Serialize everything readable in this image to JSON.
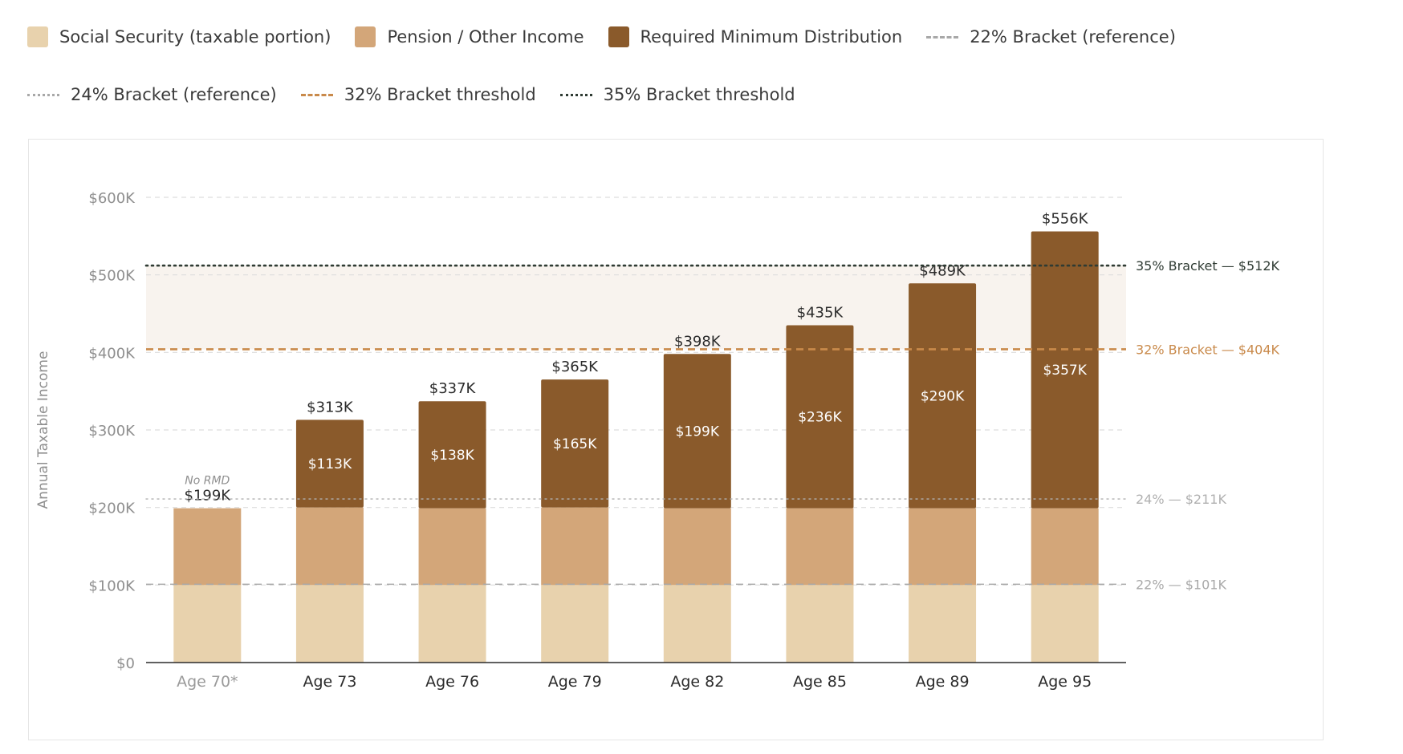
{
  "legend": {
    "items": [
      {
        "label": "Social Security (taxable portion)",
        "kind": "swatch",
        "color": "#e8d2ad"
      },
      {
        "label": "Pension / Other Income",
        "kind": "swatch",
        "color": "#d3a679"
      },
      {
        "label": "Required Minimum Distribution",
        "kind": "swatch",
        "color": "#8a5a2b"
      },
      {
        "label": "22% Bracket (reference)",
        "kind": "line",
        "color": "#a8a8a8",
        "dash": "dashed"
      },
      {
        "label": "24% Bracket (reference)",
        "kind": "line",
        "color": "#a8a8a8",
        "dash": "dotted"
      },
      {
        "label": "32% Bracket threshold",
        "kind": "line",
        "color": "#c98a4b",
        "dash": "dashed"
      },
      {
        "label": "35% Bracket threshold",
        "kind": "line",
        "color": "#2f3b33",
        "dash": "dotted"
      }
    ]
  },
  "chart_data": {
    "type": "bar",
    "stacked": true,
    "ylabel": "Annual Taxable Income",
    "ylim": [
      0,
      600000
    ],
    "yticks": [
      {
        "value": 0,
        "label": "$0"
      },
      {
        "value": 100000,
        "label": "$100K"
      },
      {
        "value": 200000,
        "label": "$200K"
      },
      {
        "value": 300000,
        "label": "$300K"
      },
      {
        "value": 400000,
        "label": "$400K"
      },
      {
        "value": 500000,
        "label": "$500K"
      },
      {
        "value": 600000,
        "label": "$600K"
      }
    ],
    "grid": true,
    "categories": [
      "Age 70*",
      "Age 73",
      "Age 76",
      "Age 79",
      "Age 82",
      "Age 85",
      "Age 89",
      "Age 95"
    ],
    "series": [
      {
        "name": "Social Security (taxable portion)",
        "color": "#e8d2ad",
        "values": [
          100000,
          100000,
          100000,
          100000,
          100000,
          100000,
          100000,
          100000
        ]
      },
      {
        "name": "Pension / Other Income",
        "color": "#d3a679",
        "values": [
          99000,
          100000,
          99000,
          100000,
          99000,
          99000,
          99000,
          99000
        ]
      },
      {
        "name": "Required Minimum Distribution",
        "color": "#8a5a2b",
        "values": [
          0,
          113000,
          138000,
          165000,
          199000,
          236000,
          290000,
          357000
        ],
        "labels": [
          "",
          "$113K",
          "$138K",
          "$165K",
          "$199K",
          "$236K",
          "$290K",
          "$357K"
        ]
      }
    ],
    "totals": [
      "$199K",
      "$313K",
      "$337K",
      "$365K",
      "$398K",
      "$435K",
      "$489K",
      "$556K"
    ],
    "total_values": [
      199000,
      313000,
      337000,
      365000,
      398000,
      435000,
      489000,
      556000
    ],
    "bar_notes": [
      "No RMD",
      "",
      "",
      "",
      "",
      "",
      "",
      ""
    ],
    "reference_lines": [
      {
        "value": 101000,
        "label": "22% — $101K",
        "color": "#a8a8a8",
        "dash": "dashed"
      },
      {
        "value": 211000,
        "label": "24% — $211K",
        "color": "#b0b0b0",
        "dash": "dotted"
      },
      {
        "value": 404000,
        "label": "32% Bracket — $404K",
        "color": "#c98a4b",
        "dash": "dashed"
      },
      {
        "value": 512000,
        "label": "35% Bracket — $512K",
        "color": "#2f3b33",
        "dash": "dotted"
      }
    ],
    "shaded_band": {
      "from": 404000,
      "to": 512000,
      "color": "#f8f3ee"
    },
    "colors": {
      "axis_text": "#8f8f8f",
      "category_text": "#2b2b2b",
      "category_muted": "#9a9a9a",
      "label_dark": "#2b2b2b",
      "label_light": "#ffffff",
      "gridline": "#dddddd",
      "baseline": "#2b2b2b"
    }
  }
}
